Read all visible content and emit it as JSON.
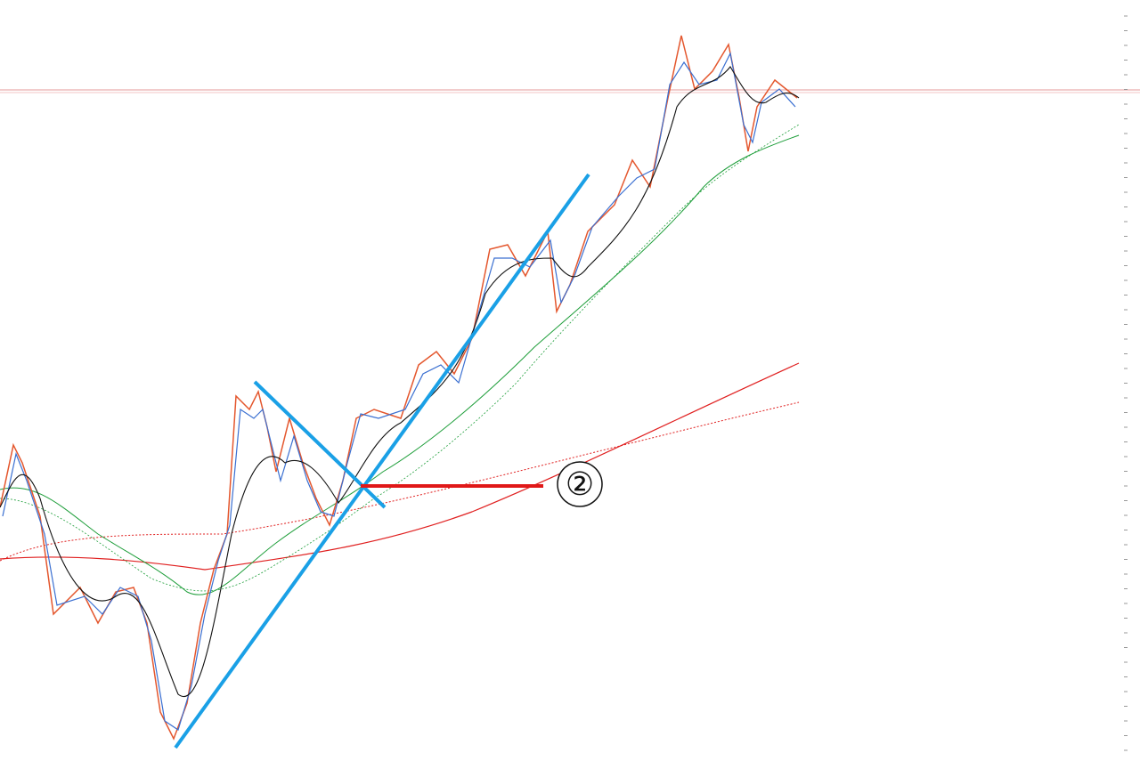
{
  "annotation": {
    "label": "②"
  }
}
